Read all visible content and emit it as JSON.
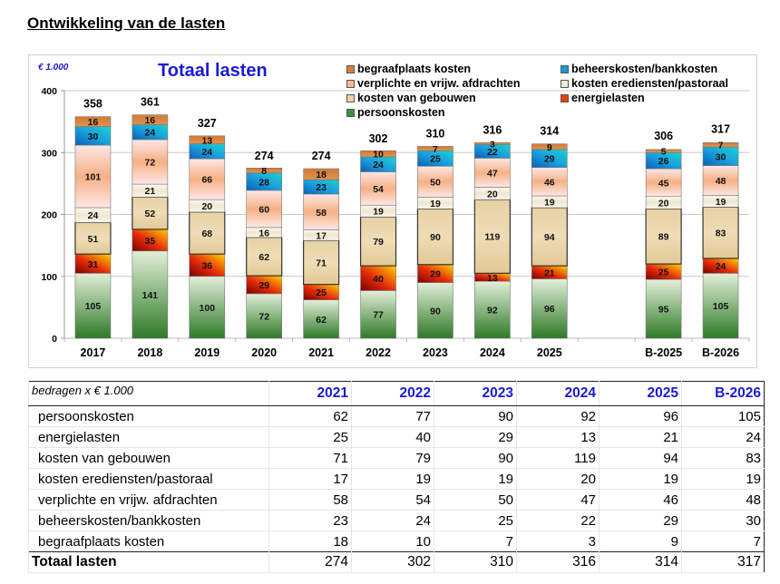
{
  "page": {
    "title": "Ontwikkeling van de lasten"
  },
  "chart_data": {
    "type": "bar",
    "stacked": true,
    "title": "Totaal lasten",
    "unit_label": "€ 1.000",
    "xlabel": "",
    "ylabel": "",
    "ylim": [
      0,
      400
    ],
    "yticks": [
      0,
      100,
      200,
      300,
      400
    ],
    "grid": true,
    "legend_position": "top-right",
    "categories": [
      "2017",
      "2018",
      "2019",
      "2020",
      "2021",
      "2022",
      "2023",
      "2024",
      "2025",
      "",
      "B-2025",
      "B-2026"
    ],
    "totals": [
      358,
      361,
      327,
      274,
      274,
      302,
      310,
      316,
      314,
      null,
      306,
      317
    ],
    "series": [
      {
        "name": "persoonskosten",
        "color": "#3f8f3a",
        "values": [
          105,
          141,
          100,
          72,
          62,
          77,
          90,
          92,
          96,
          null,
          95,
          105
        ]
      },
      {
        "name": "energielasten",
        "color": "#e8400c",
        "values": [
          31,
          35,
          36,
          29,
          25,
          40,
          29,
          13,
          21,
          null,
          25,
          24
        ]
      },
      {
        "name": "kosten van gebouwen",
        "color": "#e9d4a8",
        "values": [
          51,
          52,
          68,
          62,
          71,
          79,
          90,
          119,
          94,
          null,
          89,
          83
        ]
      },
      {
        "name": "kosten erediensten/pastoraal",
        "color": "#f1ead6",
        "values": [
          24,
          21,
          20,
          16,
          17,
          19,
          19,
          20,
          19,
          null,
          20,
          19
        ]
      },
      {
        "name": "verplichte en vrijw. afdrachten",
        "color": "#f7b98c",
        "values": [
          101,
          72,
          66,
          60,
          58,
          54,
          50,
          47,
          46,
          null,
          45,
          48
        ]
      },
      {
        "name": "beheerskosten/bankkosten",
        "color": "#1a9ad6",
        "values": [
          30,
          24,
          24,
          28,
          23,
          24,
          25,
          22,
          29,
          null,
          26,
          30
        ]
      },
      {
        "name": "begraafplaats kosten",
        "color": "#d9823f",
        "values": [
          16,
          16,
          13,
          8,
          18,
          10,
          7,
          3,
          9,
          null,
          5,
          7
        ]
      }
    ],
    "legend_order": [
      "begraafplaats kosten",
      "beheerskosten/bankkosten",
      "verplichte en vrijw. afdrachten",
      "kosten erediensten/pastoraal",
      "kosten van gebouwen",
      "energielasten",
      "persoonskosten"
    ]
  },
  "table": {
    "caption": "bedragen x € 1.000",
    "columns": [
      "2021",
      "2022",
      "2023",
      "2024",
      "2025",
      "B-2026"
    ],
    "rows": [
      {
        "label": "persoonskosten",
        "values": [
          "62",
          "77",
          "90",
          "92",
          "96",
          "105"
        ]
      },
      {
        "label": "energielasten",
        "values": [
          "25",
          "40",
          "29",
          "13",
          "21",
          "24"
        ]
      },
      {
        "label": "kosten van gebouwen",
        "values": [
          "71",
          "79",
          "90",
          "119",
          "94",
          "83"
        ]
      },
      {
        "label": "kosten erediensten/pastoraal",
        "values": [
          "17",
          "19",
          "19",
          "20",
          "19",
          "19"
        ]
      },
      {
        "label": "verplichte en vrijw. afdrachten",
        "values": [
          "58",
          "54",
          "50",
          "47",
          "46",
          "48"
        ]
      },
      {
        "label": "beheerskosten/bankkosten",
        "values": [
          "23",
          "24",
          "25",
          "22",
          "29",
          "30"
        ]
      },
      {
        "label": "begraafplaats kosten",
        "values": [
          "18",
          "10",
          "7",
          "3",
          "9",
          "7"
        ]
      }
    ],
    "total": {
      "label": "Totaal lasten",
      "values": [
        "274",
        "302",
        "310",
        "316",
        "314",
        "317"
      ]
    }
  }
}
